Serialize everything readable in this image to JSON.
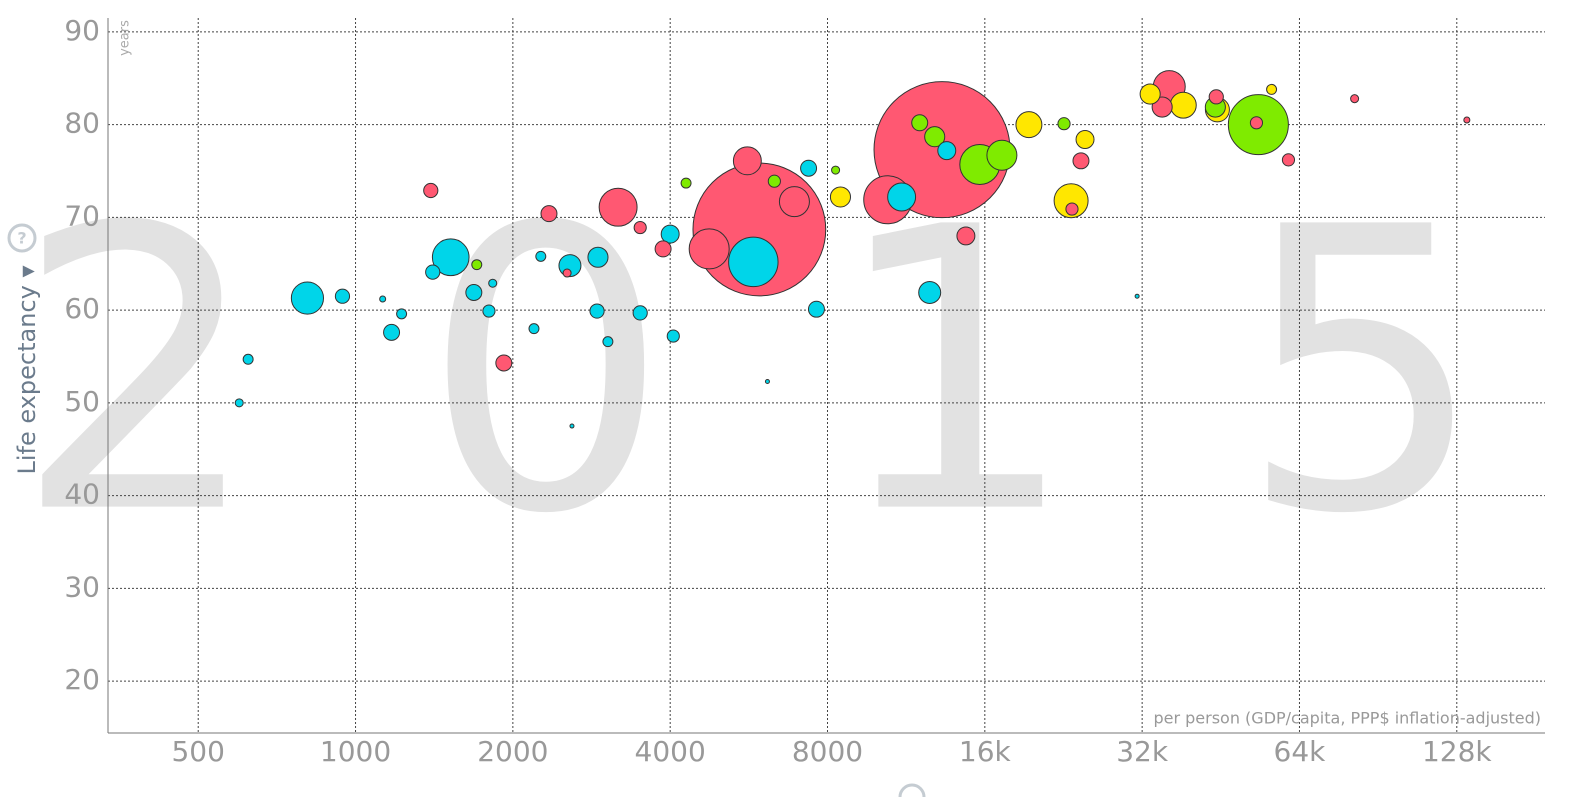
{
  "chart_data": {
    "type": "bubble",
    "year": "2015",
    "y_label": "Life expectancy ▾",
    "y_unit": "years",
    "x_label": "per person (GDP/capita, PPP$ inflation-adjusted)",
    "x_log": true,
    "grid": true,
    "xlim": [
      336,
      188800
    ],
    "ylim": [
      14.4,
      91.5
    ],
    "xticks": [
      500,
      1000,
      2000,
      4000,
      8000,
      {
        "value": 16000,
        "label": "16k"
      },
      {
        "value": 32000,
        "label": "32k"
      },
      {
        "value": 64000,
        "label": "64k"
      },
      {
        "value": 128000,
        "label": "128k"
      }
    ],
    "yticks": [
      20,
      30,
      40,
      50,
      60,
      70,
      80,
      90
    ],
    "series": [
      {
        "color": "#ff5872",
        "x": [
          13250,
          5925,
          4750,
          3180,
          5620,
          6915,
          10430,
          36060,
          34950,
          24440,
          14720,
          1393,
          2345,
          1922,
          3877,
          3505,
          60970,
          81600,
          133800,
          44360,
          23490,
          52950,
          2540
        ],
        "values": [
          77.3,
          68.7,
          66.6,
          71.1,
          76.1,
          71.7,
          71.9,
          84.1,
          81.9,
          76.1,
          68.0,
          72.9,
          70.4,
          54.3,
          66.6,
          68.9,
          76.2,
          82.8,
          80.5,
          83.0,
          70.9,
          80.2,
          64.0
        ],
        "sizes": [
          1376,
          1311,
          119,
          107,
          58,
          67,
          171,
          76,
          30,
          19,
          24,
          15,
          19,
          19,
          19,
          11,
          11,
          4.8,
          2.7,
          15,
          11,
          11,
          4.8
        ]
      },
      {
        "color": "#00d5e9",
        "x": [
          5770,
          1521,
          809,
          11090,
          12550,
          2572,
          2910,
          4000,
          7620,
          7360,
          1684,
          1172,
          1405,
          2898,
          3505,
          944,
          1800,
          2195,
          4055,
          3040,
          623,
          599,
          1225,
          1830,
          13530,
          2262,
          6140,
          2595,
          31300,
          1127
        ],
        "values": [
          65.2,
          65.7,
          61.3,
          72.2,
          61.9,
          64.8,
          65.7,
          68.2,
          60.1,
          75.3,
          61.9,
          57.6,
          64.1,
          59.9,
          59.7,
          61.5,
          59.9,
          58.0,
          57.2,
          56.6,
          54.7,
          50.0,
          59.6,
          62.9,
          77.2,
          65.8,
          52.3,
          47.5,
          61.5,
          61.2
        ],
        "sizes": [
          182,
          100,
          77,
          58,
          36,
          36,
          30,
          24,
          19,
          19,
          19,
          19,
          15,
          15,
          15,
          15,
          11,
          7.4,
          11,
          7.4,
          7.4,
          4.8,
          7.4,
          4.8,
          24,
          7.4,
          1.2,
          1.2,
          1.2,
          2.7
        ]
      },
      {
        "color": "#7feb00",
        "x": [
          53400,
          15650,
          17250,
          12830,
          12010,
          44180,
          6330,
          1706,
          22680,
          4290,
          8290
        ],
        "values": [
          80.0,
          75.7,
          76.7,
          78.7,
          80.2,
          81.9,
          73.9,
          64.9,
          80.1,
          73.7,
          75.1
        ],
        "sizes": [
          268,
          119,
          67,
          30,
          19,
          30,
          11,
          7.4,
          11,
          7.4,
          4.8
        ]
      },
      {
        "color": "#ffe700",
        "x": [
          23400,
          19430,
          38360,
          44580,
          33150,
          8470,
          24880,
          56600
        ],
        "values": [
          71.8,
          80.0,
          82.1,
          81.6,
          83.3,
          72.2,
          78.4,
          83.8
        ],
        "sizes": [
          86,
          50,
          50,
          43,
          30,
          30,
          24,
          7.4
        ]
      }
    ]
  }
}
